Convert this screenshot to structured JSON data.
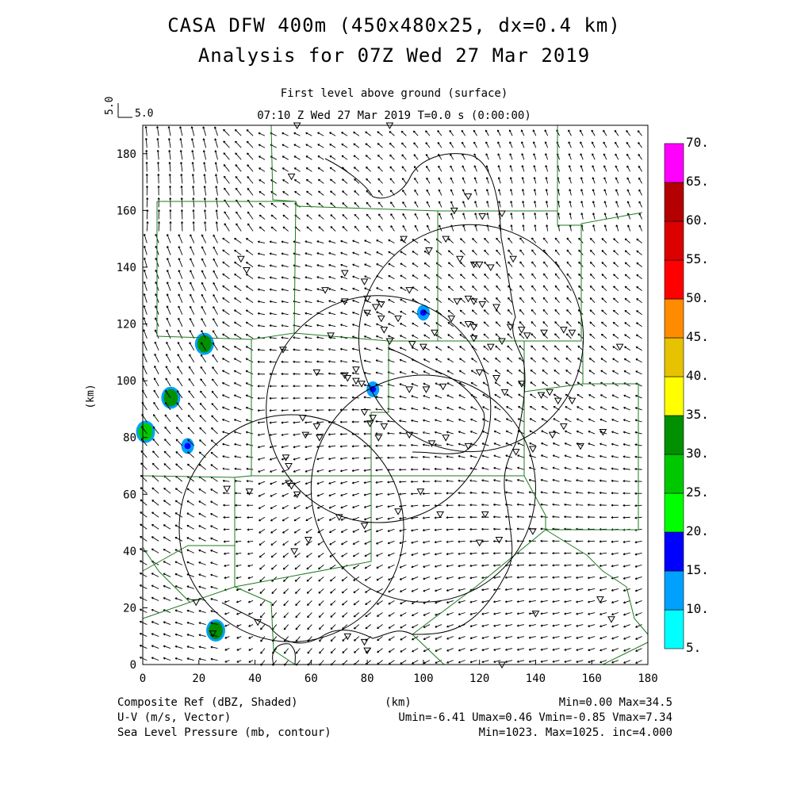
{
  "title": {
    "line1": "CASA DFW 400m (450x480x25, dx=0.4 km)",
    "line2": "Analysis for 07Z Wed 27 Mar 2019"
  },
  "subtitle": {
    "level": "First level above ground (surface)",
    "time": "07:10 Z Wed 27 Mar 2019    T=0.0 s (0:00:00)"
  },
  "vector_key": {
    "vertical_label": "5.0",
    "horizontal_label": "5.0"
  },
  "footer": {
    "left": [
      "Composite Ref (dBZ, Shaded)",
      "U-V (m/s, Vector)",
      "Sea Level Pressure (mb, contour)"
    ],
    "center": "(km)",
    "right": [
      "Min=0.00 Max=34.5",
      "Umin=-6.41 Umax=0.46 Vmin=-0.85 Vmax=7.34",
      "Min=1023. Max=1025. inc=4.000"
    ]
  },
  "colorbar": {
    "labels": [
      "5.",
      "10.",
      "15.",
      "20.",
      "25.",
      "30.",
      "35.",
      "40.",
      "45.",
      "50.",
      "55.",
      "60.",
      "65.",
      "70."
    ],
    "colors": [
      "#00ffff",
      "#00a0ff",
      "#0000ff",
      "#00ff00",
      "#00c800",
      "#009000",
      "#ffff00",
      "#e6c200",
      "#ff8c00",
      "#ff0000",
      "#dc0000",
      "#b40000",
      "#ff00ff"
    ]
  },
  "chart_data": {
    "type": "heatmap",
    "xlabel": "",
    "ylabel": "(km)",
    "xlim": [
      0,
      180
    ],
    "ylim": [
      0,
      190
    ],
    "xticks": [
      0,
      20,
      40,
      60,
      80,
      100,
      120,
      140,
      160,
      180
    ],
    "yticks": [
      0,
      20,
      40,
      60,
      80,
      100,
      120,
      140,
      160,
      180
    ],
    "radar_range_rings": [
      {
        "center": [
          53,
          48
        ],
        "radius_km": 40
      },
      {
        "center": [
          84,
          90
        ],
        "radius_km": 40
      },
      {
        "center": [
          100,
          62
        ],
        "radius_km": 40
      },
      {
        "center": [
          117,
          115
        ],
        "radius_km": 40
      }
    ],
    "reflectivity_echoes_dBZ": [
      {
        "x": 22,
        "y": 113,
        "dbz": 30
      },
      {
        "x": 10,
        "y": 94,
        "dbz": 30
      },
      {
        "x": 26,
        "y": 12,
        "dbz": 30
      },
      {
        "x": 16,
        "y": 77,
        "dbz": 15
      },
      {
        "x": 82,
        "y": 97,
        "dbz": 15
      },
      {
        "x": 1,
        "y": 82,
        "dbz": 25
      },
      {
        "x": 100,
        "y": 124,
        "dbz": 10
      }
    ],
    "wind": {
      "umin": -6.41,
      "umax": 0.46,
      "vmin": -0.85,
      "vmax": 7.34
    },
    "slp_contour_mb": {
      "min": 1023,
      "max": 1025,
      "inc": 4.0
    }
  }
}
